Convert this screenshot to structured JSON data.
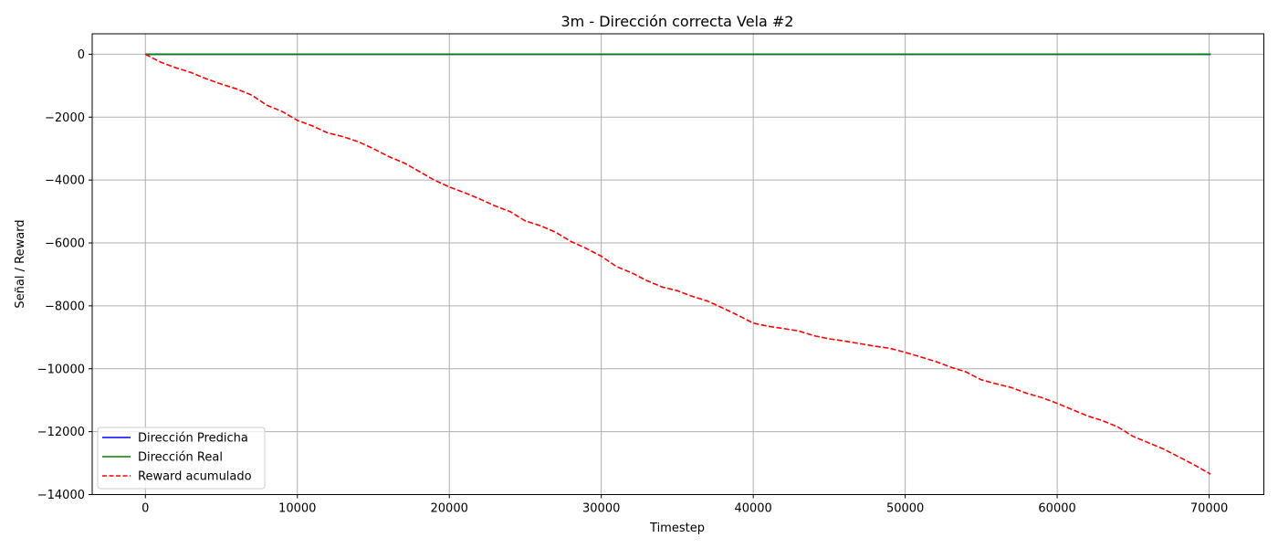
{
  "chart_data": {
    "type": "line",
    "title": "3m - Dirección correcta Vela #2",
    "xlabel": "Timestep",
    "ylabel": "Señal / Reward",
    "xlim": [
      -3500,
      73600
    ],
    "ylim": [
      -14000,
      650
    ],
    "x_ticks": [
      0,
      10000,
      20000,
      30000,
      40000,
      50000,
      60000,
      70000
    ],
    "x_tick_labels": [
      "0",
      "10000",
      "20000",
      "30000",
      "40000",
      "50000",
      "60000",
      "70000"
    ],
    "y_ticks": [
      0,
      -2000,
      -4000,
      -6000,
      -8000,
      -10000,
      -12000,
      -14000
    ],
    "y_tick_labels": [
      "0",
      "−2000",
      "−4000",
      "−6000",
      "−8000",
      "−10000",
      "−12000",
      "−14000"
    ],
    "grid": true,
    "legend_position": "lower-left",
    "series": [
      {
        "name": "Dirección Predicha",
        "color": "#0000ff",
        "style": "solid",
        "x": [
          0,
          70100
        ],
        "y": [
          0,
          0
        ]
      },
      {
        "name": "Dirección Real",
        "color": "#008000",
        "style": "solid",
        "x": [
          0,
          70100
        ],
        "y": [
          0,
          0
        ]
      },
      {
        "name": "Reward acumulado",
        "color": "#ff0000",
        "style": "dashed",
        "x": [
          0,
          1000,
          2000,
          3000,
          4000,
          5000,
          6000,
          7000,
          8000,
          9000,
          10000,
          11000,
          12000,
          13000,
          14000,
          15000,
          16000,
          17000,
          18000,
          19000,
          20000,
          21000,
          22000,
          23000,
          24000,
          25000,
          26000,
          27000,
          28000,
          29000,
          30000,
          31000,
          32000,
          33000,
          34000,
          35000,
          36000,
          37000,
          38000,
          39000,
          40000,
          41000,
          42000,
          43000,
          44000,
          45000,
          46000,
          47000,
          48000,
          49000,
          50000,
          51000,
          52000,
          53000,
          54000,
          55000,
          56000,
          57000,
          58000,
          59000,
          60000,
          61000,
          62000,
          63000,
          64000,
          65000,
          66000,
          67000,
          68000,
          69000,
          70100
        ],
        "y": [
          0,
          -250,
          -430,
          -580,
          -780,
          -950,
          -1100,
          -1300,
          -1620,
          -1820,
          -2100,
          -2280,
          -2500,
          -2620,
          -2780,
          -3000,
          -3250,
          -3450,
          -3720,
          -4000,
          -4220,
          -4400,
          -4600,
          -4820,
          -5000,
          -5300,
          -5450,
          -5660,
          -5950,
          -6170,
          -6420,
          -6750,
          -6950,
          -7200,
          -7400,
          -7520,
          -7700,
          -7850,
          -8070,
          -8300,
          -8550,
          -8650,
          -8720,
          -8800,
          -8950,
          -9050,
          -9120,
          -9200,
          -9280,
          -9350,
          -9480,
          -9620,
          -9770,
          -9950,
          -10100,
          -10350,
          -10480,
          -10600,
          -10780,
          -10920,
          -11100,
          -11300,
          -11500,
          -11650,
          -11850,
          -12150,
          -12350,
          -12550,
          -12800,
          -13050,
          -13350
        ]
      }
    ]
  }
}
